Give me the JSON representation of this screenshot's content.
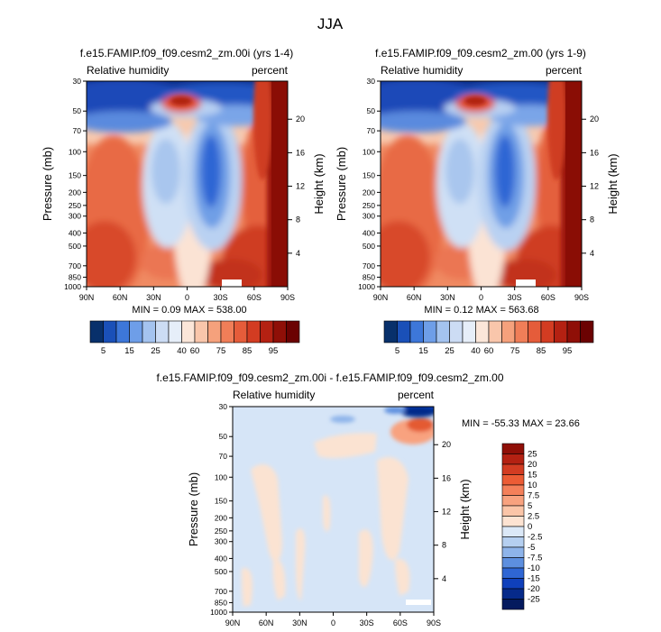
{
  "main_title": "JJA",
  "top_left": {
    "title": "f.e15.FAMIP.f09_f09.cesm2_zm.00i (yrs 1-4)",
    "left_label": "Relative humidity",
    "right_label": "percent",
    "ylabel": "Pressure (mb)",
    "ylabel_right": "Height (km)",
    "minmax": "MIN =   0.09  MAX = 538.00"
  },
  "top_right": {
    "title": "f.e15.FAMIP.f09_f09.cesm2_zm.00 (yrs 1-9)",
    "left_label": "Relative humidity",
    "right_label": "percent",
    "ylabel": "Pressure (mb)",
    "ylabel_right": "Height (km)",
    "minmax": "MIN =   0.12  MAX = 563.68"
  },
  "bottom": {
    "title": "f.e15.FAMIP.f09_f09.cesm2_zm.00i - f.e15.FAMIP.f09_f09.cesm2_zm.00",
    "left_label": "Relative humidity",
    "right_label": "percent",
    "ylabel": "Pressure (mb)",
    "ylabel_right": "Height (km)",
    "minmax": "MIN = -55.33  MAX =  23.66"
  },
  "chart_data": [
    {
      "type": "heatmap",
      "title": "f.e15.FAMIP.f09_f09.cesm2_zm.00i (yrs 1-4)",
      "variable": "Relative humidity",
      "units": "percent",
      "xlabel": "",
      "ylabel": "Pressure (mb)",
      "ylabel_right": "Height (km)",
      "x_ticks": [
        "90N",
        "60N",
        "30N",
        "0",
        "30S",
        "60S",
        "90S"
      ],
      "x_range": [
        90,
        -90
      ],
      "y_ticks": [
        30,
        50,
        70,
        100,
        150,
        200,
        250,
        300,
        400,
        500,
        700,
        850,
        1000
      ],
      "y_range": [
        30,
        1000
      ],
      "y_scale": "log",
      "y_right_ticks": [
        20,
        16,
        12,
        8,
        4
      ],
      "colorbar_labels": [
        "5",
        "15",
        "25",
        "40",
        "60",
        "75",
        "85",
        "95"
      ],
      "colorbar_levels": [
        5,
        10,
        15,
        20,
        25,
        30,
        40,
        50,
        60,
        70,
        75,
        80,
        85,
        90,
        95
      ],
      "min": 0.09,
      "max": 538.0
    },
    {
      "type": "heatmap",
      "title": "f.e15.FAMIP.f09_f09.cesm2_zm.00 (yrs 1-9)",
      "variable": "Relative humidity",
      "units": "percent",
      "xlabel": "",
      "ylabel": "Pressure (mb)",
      "ylabel_right": "Height (km)",
      "x_ticks": [
        "90N",
        "60N",
        "30N",
        "0",
        "30S",
        "60S",
        "90S"
      ],
      "x_range": [
        90,
        -90
      ],
      "y_ticks": [
        30,
        50,
        70,
        100,
        150,
        200,
        250,
        300,
        400,
        500,
        700,
        850,
        1000
      ],
      "y_range": [
        30,
        1000
      ],
      "y_scale": "log",
      "y_right_ticks": [
        20,
        16,
        12,
        8,
        4
      ],
      "colorbar_labels": [
        "5",
        "15",
        "25",
        "40",
        "60",
        "75",
        "85",
        "95"
      ],
      "colorbar_levels": [
        5,
        10,
        15,
        20,
        25,
        30,
        40,
        50,
        60,
        70,
        75,
        80,
        85,
        90,
        95
      ],
      "min": 0.12,
      "max": 563.68
    },
    {
      "type": "heatmap",
      "title": "f.e15.FAMIP.f09_f09.cesm2_zm.00i - f.e15.FAMIP.f09_f09.cesm2_zm.00",
      "variable": "Relative humidity",
      "units": "percent",
      "xlabel": "",
      "ylabel": "Pressure (mb)",
      "ylabel_right": "Height (km)",
      "x_ticks": [
        "90N",
        "60N",
        "30N",
        "0",
        "30S",
        "60S",
        "90S"
      ],
      "x_range": [
        90,
        -90
      ],
      "y_ticks": [
        30,
        50,
        70,
        100,
        150,
        200,
        250,
        300,
        400,
        500,
        700,
        850,
        1000
      ],
      "y_range": [
        30,
        1000
      ],
      "y_scale": "log",
      "y_right_ticks": [
        20,
        16,
        12,
        8,
        4
      ],
      "colorbar_labels": [
        "25",
        "20",
        "15",
        "10",
        "7.5",
        "5",
        "2.5",
        "0",
        "-2.5",
        "-5",
        "-7.5",
        "-10",
        "-15",
        "-20",
        "-25"
      ],
      "colorbar_orientation": "vertical",
      "min": -55.33,
      "max": 23.66
    }
  ],
  "colors": {
    "abs_scale": [
      "#08306b",
      "#1a50b8",
      "#3d77d9",
      "#6e9ee8",
      "#a4c3ef",
      "#ccdcf4",
      "#e6eef9",
      "#fbe6d9",
      "#f9c6ab",
      "#f5a17c",
      "#f07e58",
      "#e55c3a",
      "#d33c22",
      "#b42112",
      "#8f0f07",
      "#6b0202"
    ],
    "diff_scale": [
      "#8f0f07",
      "#b42112",
      "#d33c22",
      "#ec5c35",
      "#f4805a",
      "#f8a27f",
      "#fbc5a8",
      "#fde3d2",
      "#dbe8f7",
      "#b5cff0",
      "#8eb4ea",
      "#5d8fdf",
      "#2f66d4",
      "#0f40bb",
      "#062a8a",
      "#041a5e"
    ]
  }
}
